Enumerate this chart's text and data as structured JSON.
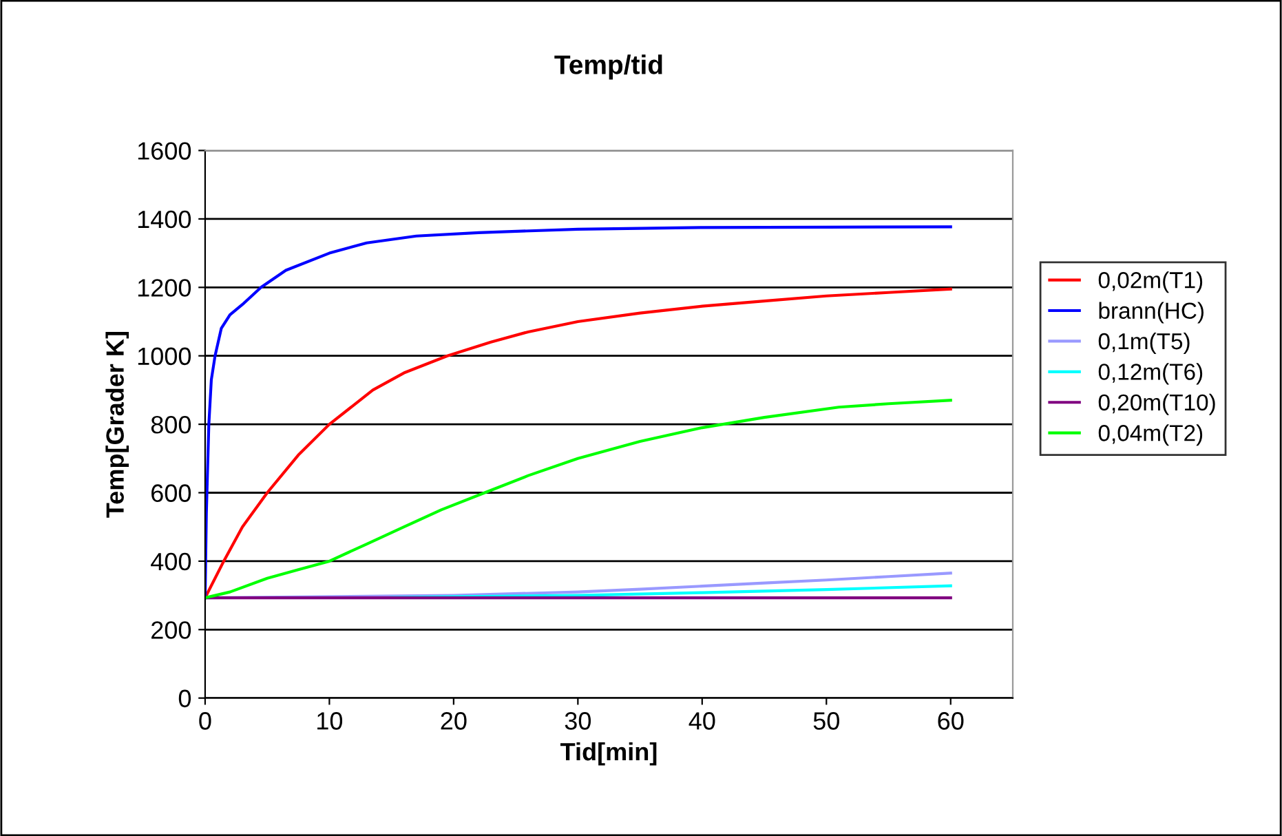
{
  "chart_data": {
    "type": "line",
    "title": "Temp/tid",
    "xlabel": "Tid[min]",
    "ylabel": "Temp[Grader K]",
    "xlim": [
      0,
      65
    ],
    "xticks": [
      0,
      10,
      20,
      30,
      40,
      50,
      60
    ],
    "ylim": [
      0,
      1600
    ],
    "yticks": [
      0,
      200,
      400,
      600,
      800,
      1000,
      1200,
      1400,
      1600
    ],
    "grid": "y",
    "legend": "right",
    "marker": "none",
    "line_style": "solid",
    "series": [
      {
        "name": "0,02m(T1)",
        "color": "#ff0000",
        "x": [
          0,
          1.5,
          3,
          5,
          7.5,
          10,
          13.5,
          16,
          19.5,
          23,
          26,
          30,
          35,
          40,
          45,
          50,
          55,
          60
        ],
        "values": [
          293,
          400,
          500,
          600,
          710,
          800,
          900,
          950,
          1000,
          1040,
          1070,
          1100,
          1125,
          1145,
          1160,
          1175,
          1185,
          1195
        ]
      },
      {
        "name": "brann(HC)",
        "color": "#0000ff",
        "x": [
          0,
          0.1,
          0.3,
          0.5,
          0.8,
          1.3,
          2,
          3,
          4.5,
          6.5,
          10,
          13,
          17,
          22,
          30,
          40,
          50,
          60
        ],
        "values": [
          293,
          540,
          800,
          930,
          1000,
          1080,
          1120,
          1150,
          1200,
          1250,
          1300,
          1330,
          1350,
          1360,
          1370,
          1375,
          1376,
          1377
        ]
      },
      {
        "name": "0,1m(T5)",
        "color": "#9999ff",
        "x": [
          0,
          20,
          30,
          35,
          40,
          45,
          50,
          55,
          60
        ],
        "values": [
          293,
          300,
          310,
          318,
          327,
          336,
          345,
          355,
          365
        ]
      },
      {
        "name": "0,12m(T6)",
        "color": "#00ffff",
        "x": [
          15,
          30,
          40,
          50,
          60
        ],
        "values": [
          294,
          300,
          308,
          317,
          328
        ]
      },
      {
        "name": "0,20m(T10)",
        "color": "#800080",
        "x": [
          0,
          60
        ],
        "values": [
          293,
          293
        ]
      },
      {
        "name": "0,04m(T2)",
        "color": "#00ff00",
        "x": [
          0,
          2,
          5,
          7.5,
          10,
          13,
          16,
          19,
          22.5,
          26,
          30,
          35,
          40,
          45,
          51,
          55,
          60
        ],
        "values": [
          293,
          310,
          350,
          375,
          400,
          450,
          500,
          550,
          600,
          650,
          700,
          750,
          790,
          820,
          850,
          860,
          870
        ]
      }
    ]
  }
}
